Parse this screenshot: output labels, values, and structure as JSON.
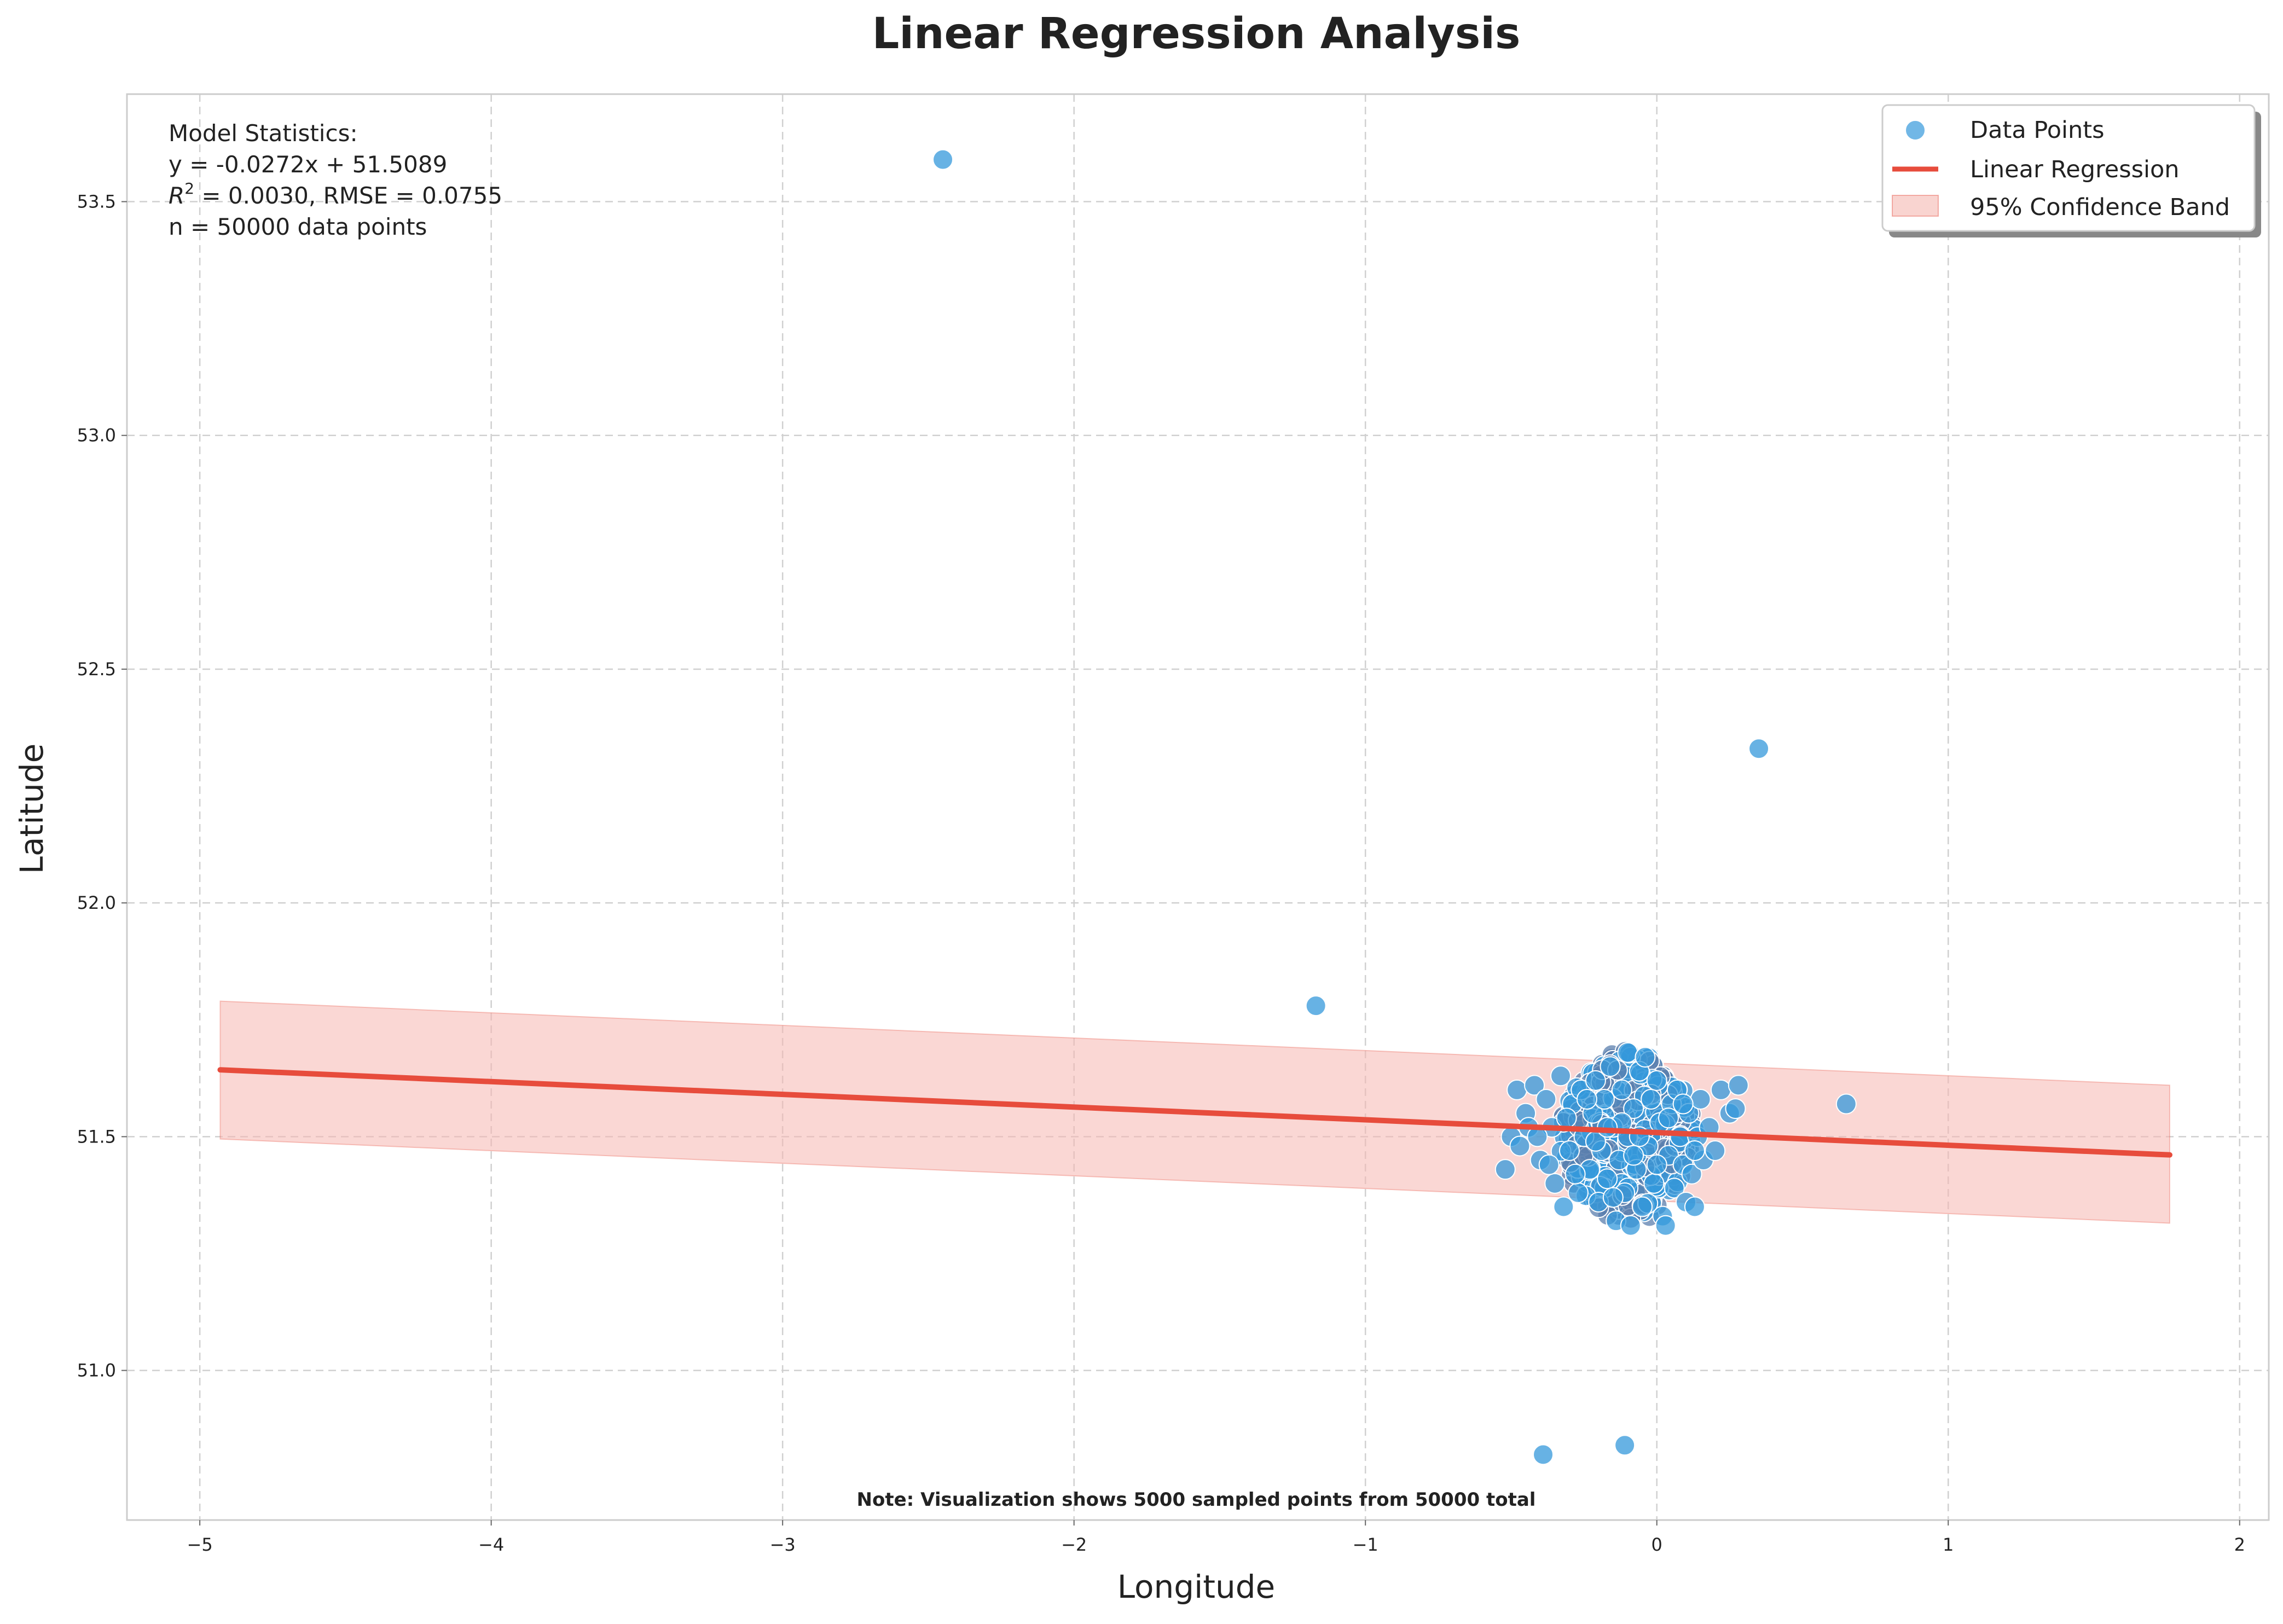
{
  "chart_data": {
    "type": "scatter",
    "title": "Linear Regression Analysis",
    "xlabel": "Longitude",
    "ylabel": "Latitude",
    "xlim": [
      -5.25,
      2.1
    ],
    "ylim": [
      50.68,
      53.73
    ],
    "xticks": [
      -5,
      -4,
      -3,
      -2,
      -1,
      0,
      1,
      2
    ],
    "yticks": [
      51.0,
      51.5,
      52.0,
      52.5,
      53.0,
      53.5
    ],
    "xtick_labels": [
      "−5",
      "−4",
      "−3",
      "−2",
      "−1",
      "0",
      "1",
      "2"
    ],
    "ytick_labels": [
      "51.0",
      "51.5",
      "52.0",
      "52.5",
      "53.0",
      "53.5"
    ],
    "grid": true,
    "legend": {
      "placement": "upper right",
      "entries": [
        "Data Points",
        "Linear Regression",
        "95% Confidence Band"
      ]
    },
    "stats_text": {
      "heading": "Model Statistics:",
      "equation": "y = -0.0272x + 51.5089",
      "r2_symbol": "R",
      "r2_exponent": "2",
      "r2_rest": " = 0.0030, RMSE = 0.0755",
      "n_text": "n = 50000 data points"
    },
    "note": "Note: Visualization shows 5000 sampled points from 50000 total",
    "regression": {
      "slope": -0.0272,
      "intercept": 51.5089,
      "x_range": [
        -4.93,
        1.76
      ]
    },
    "confidence_band": {
      "x": [
        -4.93,
        1.76
      ],
      "lower": [
        51.495,
        51.315
      ],
      "upper": [
        51.79,
        51.61
      ]
    },
    "cluster": {
      "x_center": -0.1,
      "y_center": 51.5,
      "x_spread": 0.2,
      "y_spread": 0.085
    },
    "series": [
      {
        "name": "Data Points",
        "points": [
          [
            -2.45,
            53.59
          ],
          [
            0.35,
            52.33
          ],
          [
            -1.17,
            51.78
          ],
          [
            0.65,
            51.57
          ],
          [
            -0.39,
            50.82
          ],
          [
            -0.11,
            50.84
          ],
          [
            -0.5,
            51.5
          ],
          [
            -0.52,
            51.43
          ],
          [
            -0.48,
            51.6
          ],
          [
            -0.45,
            51.55
          ],
          [
            -0.47,
            51.48
          ],
          [
            -0.42,
            51.61
          ],
          [
            -0.4,
            51.45
          ],
          [
            -0.38,
            51.58
          ],
          [
            -0.36,
            51.52
          ],
          [
            -0.35,
            51.4
          ],
          [
            -0.33,
            51.63
          ],
          [
            -0.32,
            51.35
          ],
          [
            -0.3,
            51.47
          ],
          [
            -0.29,
            51.57
          ],
          [
            -0.27,
            51.38
          ],
          [
            -0.26,
            51.6
          ],
          [
            -0.25,
            51.5
          ],
          [
            -0.23,
            51.43
          ],
          [
            -0.22,
            51.55
          ],
          [
            -0.21,
            51.62
          ],
          [
            -0.2,
            51.36
          ],
          [
            -0.19,
            51.47
          ],
          [
            -0.18,
            51.58
          ],
          [
            -0.17,
            51.41
          ],
          [
            -0.16,
            51.65
          ],
          [
            -0.15,
            51.52
          ],
          [
            -0.14,
            51.32
          ],
          [
            -0.13,
            51.45
          ],
          [
            -0.12,
            51.6
          ],
          [
            -0.11,
            51.38
          ],
          [
            -0.1,
            51.68
          ],
          [
            -0.1,
            51.5
          ],
          [
            -0.09,
            51.31
          ],
          [
            -0.08,
            51.56
          ],
          [
            -0.07,
            51.43
          ],
          [
            -0.06,
            51.64
          ],
          [
            -0.05,
            51.35
          ],
          [
            -0.04,
            51.67
          ],
          [
            -0.03,
            51.48
          ],
          [
            -0.02,
            51.58
          ],
          [
            -0.01,
            51.4
          ],
          [
            0.0,
            51.62
          ],
          [
            0.01,
            51.53
          ],
          [
            0.02,
            51.33
          ],
          [
            0.03,
            51.31
          ],
          [
            0.04,
            51.46
          ],
          [
            0.05,
            51.57
          ],
          [
            0.06,
            51.39
          ],
          [
            0.07,
            51.6
          ],
          [
            0.08,
            51.5
          ],
          [
            0.09,
            51.44
          ],
          [
            0.1,
            51.36
          ],
          [
            0.11,
            51.55
          ],
          [
            0.12,
            51.42
          ],
          [
            0.13,
            51.35
          ],
          [
            0.14,
            51.5
          ],
          [
            0.15,
            51.58
          ],
          [
            0.16,
            51.45
          ],
          [
            0.18,
            51.52
          ],
          [
            0.2,
            51.47
          ],
          [
            0.22,
            51.6
          ],
          [
            0.25,
            51.55
          ],
          [
            0.28,
            51.61
          ],
          [
            0.27,
            51.56
          ],
          [
            -0.44,
            51.52
          ],
          [
            -0.41,
            51.5
          ],
          [
            -0.37,
            51.44
          ],
          [
            -0.31,
            51.54
          ],
          [
            -0.28,
            51.42
          ],
          [
            -0.24,
            51.58
          ],
          [
            -0.21,
            51.49
          ],
          [
            -0.15,
            51.37
          ],
          [
            -0.12,
            51.53
          ],
          [
            -0.06,
            51.5
          ],
          [
            0.0,
            51.44
          ],
          [
            0.04,
            51.54
          ],
          [
            0.09,
            51.57
          ],
          [
            0.13,
            51.47
          ],
          [
            -0.17,
            51.52
          ],
          [
            -0.08,
            51.46
          ]
        ]
      }
    ]
  },
  "colors": {
    "point_fill": "#3498db",
    "point_fill_dense": "#5b7fae",
    "point_edge": "#ffffff",
    "regression_line": "#e74c3c",
    "band_fill": "#f5b7b1",
    "grid": "#d0d0d0",
    "frame": "#cccccc",
    "text": "#222222"
  }
}
